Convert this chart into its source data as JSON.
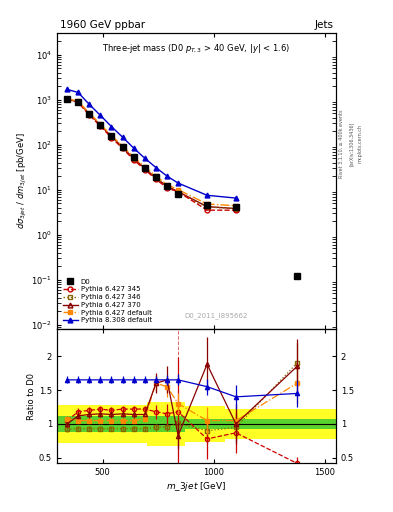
{
  "title_left": "1960 GeV ppbar",
  "title_right": "Jets",
  "subtitle": "Three-jet mass (D0 p_{T,3} > 40 GeV, |y| < 1.6)",
  "ylabel_main": "d#sigma_3jet / dm_3jet [pb/GeV]",
  "ylabel_ratio": "Ratio to D0",
  "xlabel": "m_3jet [GeV]",
  "watermark": "D0_2011_I895662",
  "side_label": "Rivet 3.1.10, #geq 400k events",
  "side_label2": "[arXiv:1306.3436]",
  "side_label3": "cern.ch",
  "x_d0": [
    340,
    390,
    440,
    490,
    540,
    590,
    640,
    690,
    740,
    790,
    840,
    970,
    1100,
    1375
  ],
  "y_d0": [
    1050,
    900,
    490,
    280,
    155,
    90,
    52,
    31,
    19,
    12,
    8.0,
    4.5,
    4.2,
    0.12
  ],
  "yerr_d0_lo": [
    70,
    55,
    28,
    18,
    9,
    5,
    3.5,
    2.5,
    1.5,
    1.0,
    0.7,
    0.5,
    0.5,
    0.02
  ],
  "yerr_d0_hi": [
    70,
    55,
    28,
    18,
    9,
    5,
    3.5,
    2.5,
    1.5,
    1.0,
    0.7,
    0.5,
    0.5,
    0.02
  ],
  "x_p6_345": [
    340,
    390,
    440,
    490,
    540,
    590,
    640,
    690,
    740,
    790,
    840,
    970,
    1100
  ],
  "y_p6_345": [
    1050,
    870,
    460,
    260,
    143,
    83,
    46,
    28,
    17,
    11,
    9,
    3.5,
    3.5
  ],
  "x_p6_346": [
    340,
    390,
    440,
    490,
    540,
    590,
    640,
    690,
    740,
    790,
    840,
    970,
    1100
  ],
  "y_p6_346": [
    1020,
    880,
    480,
    265,
    148,
    86,
    48,
    29,
    18,
    11.5,
    8.5,
    4.1,
    3.8
  ],
  "x_p6_370": [
    340,
    390,
    440,
    490,
    540,
    590,
    640,
    690,
    740,
    790,
    840,
    970,
    1100
  ],
  "y_p6_370": [
    1030,
    890,
    490,
    272,
    152,
    88,
    49,
    30,
    18,
    12,
    9,
    4.2,
    3.8
  ],
  "x_p6_def": [
    340,
    390,
    440,
    490,
    540,
    590,
    640,
    690,
    740,
    790,
    840,
    970,
    1100
  ],
  "y_p6_def": [
    1060,
    920,
    510,
    285,
    160,
    93,
    53,
    32,
    20,
    13,
    10,
    4.8,
    4.4
  ],
  "x_p8_def": [
    340,
    390,
    440,
    490,
    540,
    590,
    640,
    690,
    740,
    790,
    840,
    970,
    1100
  ],
  "y_p8_def": [
    1700,
    1450,
    790,
    450,
    253,
    147,
    84,
    50,
    31,
    20,
    14,
    7.5,
    6.5
  ],
  "ratio_x": [
    340,
    390,
    440,
    490,
    540,
    590,
    640,
    690,
    740,
    790,
    840,
    970,
    1100,
    1375
  ],
  "ratio_p6_345": [
    1.05,
    1.18,
    1.2,
    1.22,
    1.2,
    1.22,
    1.22,
    1.22,
    1.18,
    1.15,
    1.18,
    0.78,
    0.87,
    0.42
  ],
  "ratio_p6_345_err": [
    0.05,
    0.05,
    0.05,
    0.05,
    0.05,
    0.05,
    0.05,
    0.05,
    0.1,
    0.15,
    0.8,
    0.3,
    0.3,
    0.1
  ],
  "ratio_p6_346": [
    0.92,
    0.93,
    0.93,
    0.93,
    0.93,
    0.93,
    0.93,
    0.93,
    0.95,
    0.96,
    1.01,
    0.9,
    0.95,
    1.9
  ],
  "ratio_p6_346_err": [
    0.04,
    0.04,
    0.04,
    0.04,
    0.04,
    0.04,
    0.04,
    0.04,
    0.05,
    0.06,
    0.1,
    0.2,
    0.2,
    0.3
  ],
  "ratio_p6_370": [
    1.0,
    1.12,
    1.14,
    1.15,
    1.14,
    1.15,
    1.14,
    1.14,
    1.6,
    1.65,
    0.83,
    1.88,
    1.0,
    1.85
  ],
  "ratio_p6_370_err": [
    0.05,
    0.05,
    0.05,
    0.05,
    0.05,
    0.05,
    0.05,
    0.05,
    0.15,
    0.2,
    0.2,
    0.4,
    0.3,
    0.4
  ],
  "ratio_p6_def": [
    1.08,
    1.05,
    1.05,
    1.05,
    1.05,
    1.05,
    1.05,
    1.08,
    1.6,
    1.55,
    1.3,
    1.05,
    1.05,
    1.6
  ],
  "ratio_p6_def_err": [
    0.04,
    0.04,
    0.04,
    0.04,
    0.04,
    0.04,
    0.04,
    0.04,
    0.12,
    0.15,
    0.15,
    0.2,
    0.2,
    0.3
  ],
  "ratio_p8_def": [
    1.65,
    1.65,
    1.65,
    1.65,
    1.65,
    1.65,
    1.65,
    1.65,
    1.65,
    1.65,
    1.65,
    1.55,
    1.4,
    1.45
  ],
  "ratio_p8_def_err": [
    0.05,
    0.05,
    0.05,
    0.05,
    0.05,
    0.05,
    0.05,
    0.05,
    0.05,
    0.07,
    0.08,
    0.12,
    0.18,
    0.2
  ],
  "band_edges": [
    300,
    700,
    870,
    1050,
    1550
  ],
  "band_green_lo": [
    0.88,
    0.88,
    0.92,
    0.92,
    0.92
  ],
  "band_green_hi": [
    1.12,
    1.12,
    1.08,
    1.08,
    1.08
  ],
  "band_yellow_lo": [
    0.72,
    0.67,
    0.73,
    0.78,
    0.78
  ],
  "band_yellow_hi": [
    1.28,
    1.33,
    1.27,
    1.22,
    1.22
  ],
  "color_d0": "#000000",
  "color_p6_345": "#cc0000",
  "color_p6_346": "#886600",
  "color_p6_370": "#880000",
  "color_p6_def": "#ff8800",
  "color_p8_def": "#0000cc",
  "color_green": "#00bb33",
  "color_yellow": "#ffff00",
  "ylim_main": [
    0.008,
    30000
  ],
  "ylim_ratio": [
    0.42,
    2.4
  ],
  "xlim": [
    295,
    1550
  ]
}
